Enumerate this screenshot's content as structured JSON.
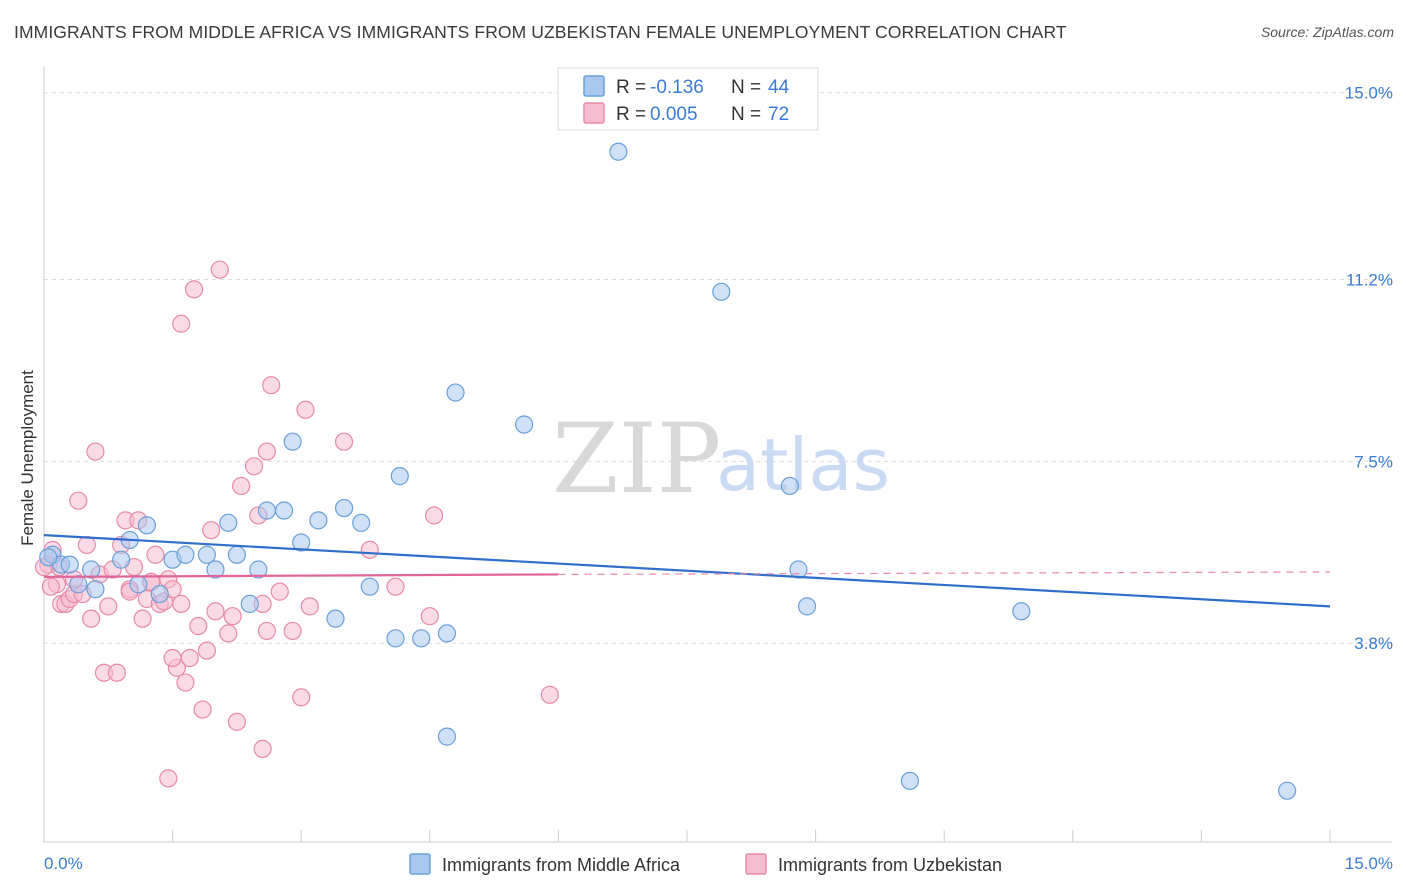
{
  "title": "IMMIGRANTS FROM MIDDLE AFRICA VS IMMIGRANTS FROM UZBEKISTAN FEMALE UNEMPLOYMENT CORRELATION CHART",
  "source": "Source: ZipAtlas.com",
  "watermark": {
    "zip": "ZIP",
    "atlas": "atlas"
  },
  "colors": {
    "blue_fill": "#a9c8f0",
    "blue_stroke": "#6a9fd8",
    "blue_line": "#2f6fcb",
    "pink_fill": "#f6bcd0",
    "pink_stroke": "#e88aa8",
    "pink_line": "#e0669a",
    "grid": "#dddddd",
    "axis_label": "#3a7bd5"
  },
  "legend": {
    "rows": [
      {
        "r_label": "R = ",
        "r_value": "-0.136",
        "n_label": "N = ",
        "n_value": "44"
      },
      {
        "r_label": "R = ",
        "r_value": "0.005",
        "n_label": "N = ",
        "n_value": "72"
      }
    ]
  },
  "chart_data": {
    "type": "scatter",
    "title": "IMMIGRANTS FROM MIDDLE AFRICA VS IMMIGRANTS FROM UZBEKISTAN FEMALE UNEMPLOYMENT CORRELATION CHART",
    "xlabel": "",
    "ylabel": "Female Unemployment",
    "xlim": [
      0,
      15
    ],
    "ylim": [
      0,
      15.3
    ],
    "y_ticks": [
      3.8,
      7.5,
      11.2,
      15.0
    ],
    "y_tick_labels": [
      "3.8%",
      "7.5%",
      "11.2%",
      "15.0%"
    ],
    "x_tick_labels": [
      "0.0%",
      "15.0%"
    ],
    "grid": true,
    "legend_placement": "top-center",
    "series": [
      {
        "name": "Immigrants from Middle Africa",
        "color": "blue",
        "R": -0.136,
        "N": 44,
        "trend": {
          "x0": 0,
          "y0": 6.0,
          "x1": 15,
          "y1": 4.55
        },
        "points": [
          [
            0.1,
            5.6
          ],
          [
            0.2,
            5.4
          ],
          [
            0.3,
            5.4
          ],
          [
            0.4,
            5.0
          ],
          [
            0.6,
            4.9
          ],
          [
            0.9,
            5.5
          ],
          [
            1.0,
            5.9
          ],
          [
            1.1,
            5.0
          ],
          [
            1.2,
            6.2
          ],
          [
            1.35,
            4.8
          ],
          [
            1.5,
            5.5
          ],
          [
            1.65,
            5.6
          ],
          [
            1.9,
            5.6
          ],
          [
            2.0,
            5.3
          ],
          [
            2.15,
            6.25
          ],
          [
            2.25,
            5.6
          ],
          [
            2.4,
            4.6
          ],
          [
            2.5,
            5.3
          ],
          [
            2.6,
            6.5
          ],
          [
            2.8,
            6.5
          ],
          [
            2.9,
            7.9
          ],
          [
            3.0,
            5.85
          ],
          [
            3.2,
            6.3
          ],
          [
            3.4,
            4.3
          ],
          [
            3.5,
            6.55
          ],
          [
            3.7,
            6.25
          ],
          [
            3.8,
            4.95
          ],
          [
            4.1,
            3.9
          ],
          [
            4.15,
            7.2
          ],
          [
            4.4,
            3.9
          ],
          [
            4.7,
            4.0
          ],
          [
            4.8,
            8.9
          ],
          [
            4.7,
            1.9
          ],
          [
            5.6,
            8.25
          ],
          [
            6.7,
            13.8
          ],
          [
            7.9,
            10.95
          ],
          [
            8.7,
            7.0
          ],
          [
            8.8,
            5.3
          ],
          [
            8.9,
            4.55
          ],
          [
            10.1,
            1.0
          ],
          [
            11.4,
            4.45
          ],
          [
            14.5,
            0.8
          ],
          [
            0.05,
            5.55
          ],
          [
            0.55,
            5.3
          ]
        ]
      },
      {
        "name": "Immigrants from Uzbekistan",
        "color": "pink",
        "R": 0.005,
        "N": 72,
        "trend": {
          "x0": 0,
          "y0": 5.15,
          "x1": 6.0,
          "y1": 5.2,
          "dash_to_x": 15,
          "dash_to_y": 5.25
        },
        "points": [
          [
            0.05,
            5.4
          ],
          [
            0.1,
            5.7
          ],
          [
            0.15,
            5.0
          ],
          [
            0.2,
            4.6
          ],
          [
            0.25,
            4.6
          ],
          [
            0.3,
            4.7
          ],
          [
            0.35,
            4.8
          ],
          [
            0.4,
            6.7
          ],
          [
            0.45,
            4.8
          ],
          [
            0.5,
            5.8
          ],
          [
            0.55,
            4.3
          ],
          [
            0.6,
            7.7
          ],
          [
            0.65,
            5.2
          ],
          [
            0.7,
            3.2
          ],
          [
            0.8,
            5.3
          ],
          [
            0.85,
            3.2
          ],
          [
            0.9,
            5.8
          ],
          [
            0.95,
            6.3
          ],
          [
            1.0,
            4.9
          ],
          [
            1.05,
            5.35
          ],
          [
            1.1,
            6.3
          ],
          [
            1.15,
            4.3
          ],
          [
            1.2,
            4.7
          ],
          [
            1.25,
            5.05
          ],
          [
            1.3,
            5.6
          ],
          [
            1.35,
            4.6
          ],
          [
            1.4,
            4.65
          ],
          [
            1.45,
            5.1
          ],
          [
            1.5,
            4.9
          ],
          [
            1.55,
            3.3
          ],
          [
            1.6,
            4.6
          ],
          [
            1.6,
            10.3
          ],
          [
            1.65,
            3.0
          ],
          [
            1.7,
            3.5
          ],
          [
            1.75,
            11.0
          ],
          [
            1.8,
            4.15
          ],
          [
            1.85,
            2.45
          ],
          [
            1.9,
            3.65
          ],
          [
            1.95,
            6.1
          ],
          [
            2.0,
            4.45
          ],
          [
            2.05,
            11.4
          ],
          [
            2.15,
            4.0
          ],
          [
            2.2,
            4.35
          ],
          [
            2.25,
            2.2
          ],
          [
            2.3,
            7.0
          ],
          [
            2.45,
            7.4
          ],
          [
            2.5,
            6.4
          ],
          [
            2.55,
            4.6
          ],
          [
            2.6,
            4.05
          ],
          [
            2.6,
            7.7
          ],
          [
            2.65,
            9.05
          ],
          [
            2.75,
            4.85
          ],
          [
            2.9,
            4.05
          ],
          [
            3.0,
            2.7
          ],
          [
            3.1,
            4.55
          ],
          [
            3.05,
            8.55
          ],
          [
            3.5,
            7.9
          ],
          [
            3.8,
            5.7
          ],
          [
            4.1,
            4.95
          ],
          [
            4.5,
            4.35
          ],
          [
            4.55,
            6.4
          ],
          [
            5.9,
            2.75
          ],
          [
            0.0,
            5.35
          ],
          [
            0.08,
            4.95
          ],
          [
            0.18,
            5.35
          ],
          [
            1.45,
            1.05
          ],
          [
            2.55,
            1.65
          ],
          [
            0.75,
            4.55
          ],
          [
            1.0,
            4.85
          ],
          [
            1.25,
            5.05
          ],
          [
            1.5,
            3.5
          ],
          [
            0.35,
            5.1
          ]
        ]
      }
    ]
  },
  "bottom_legend": [
    {
      "label": "Immigrants from Middle Africa"
    },
    {
      "label": "Immigrants from Uzbekistan"
    }
  ]
}
